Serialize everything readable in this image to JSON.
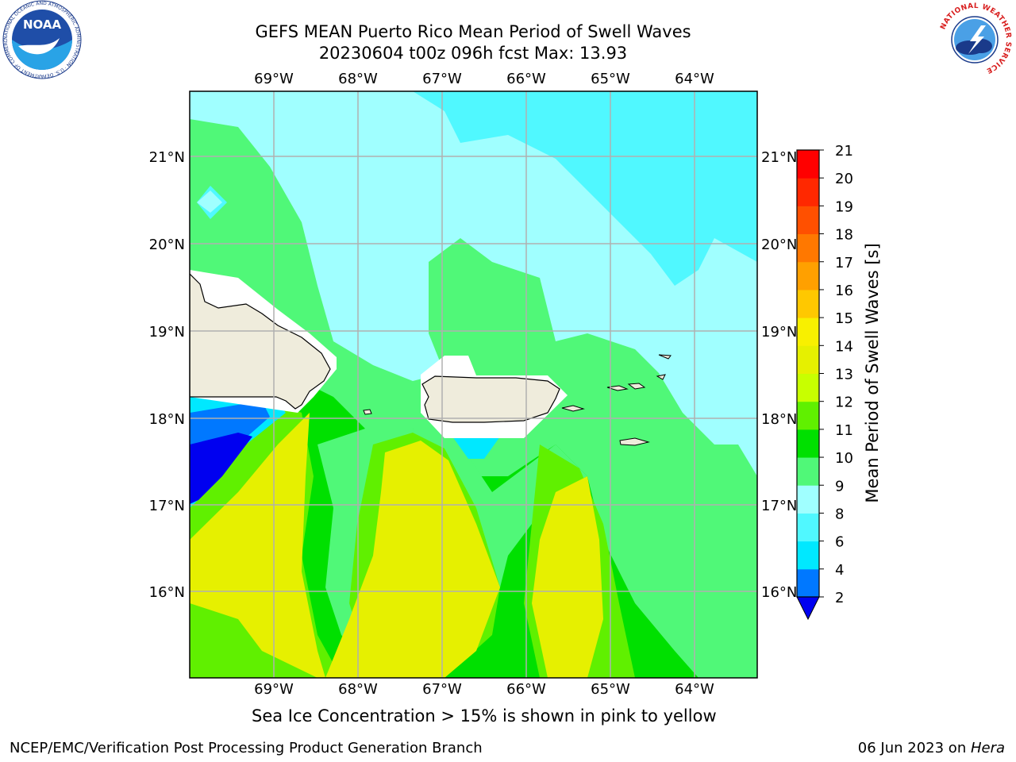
{
  "header": {
    "title_line1": "GEFS MEAN Puerto Rico Mean Period of Swell Waves",
    "title_line2": "20230604 t00z 096h fcst   Max: 13.93"
  },
  "map": {
    "lon_labels": [
      "69°W",
      "68°W",
      "67°W",
      "66°W",
      "65°W",
      "64°W"
    ],
    "lat_labels": [
      "21°N",
      "20°N",
      "19°N",
      "18°N",
      "17°N",
      "16°N"
    ],
    "land_color": "#efecdc",
    "gridline_color": "#b0b0b0"
  },
  "colorbar": {
    "label": "Mean Period of Swell Waves [s]",
    "ticks": [
      "2",
      "4",
      "6",
      "8",
      "9",
      "10",
      "11",
      "12",
      "13",
      "14",
      "15",
      "16",
      "17",
      "18",
      "19",
      "20",
      "21"
    ],
    "colors": [
      "#0000f0",
      "#0078ff",
      "#00e8ff",
      "#50f8ff",
      "#a0ffff",
      "#50f878",
      "#00e000",
      "#60f000",
      "#c8ff00",
      "#e6f000",
      "#f8f000",
      "#ffc800",
      "#ffa000",
      "#ff7800",
      "#ff5000",
      "#ff2800",
      "#ff0000"
    ],
    "extend_color": "#0000f0"
  },
  "caption": "Sea Ice Concentration > 15% is shown in pink to yellow",
  "footer": {
    "left": "NCEP/EMC/Verification Post Processing Product Generation Branch",
    "right_date": "06 Jun 2023 on ",
    "right_host": "Hera"
  },
  "logos": {
    "noaa_icon": "noaa-logo",
    "nws_icon": "nws-logo",
    "noaa_text": "NOAA",
    "noaa_ring_text": "NATIONAL OCEANIC AND ATMOSPHERIC ADMINISTRATION · U.S. DEPARTMENT OF COMMERCE",
    "nws_ring_text": "NATIONAL WEATHER SERVICE"
  }
}
